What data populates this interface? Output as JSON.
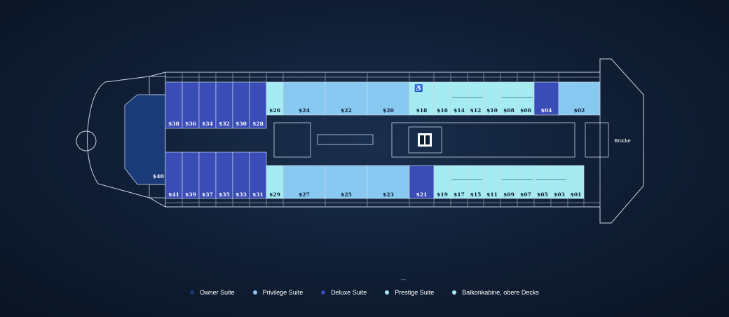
{
  "colors": {
    "owner": "#1a3a78",
    "privilege": "#87c9f0",
    "deluxe": "#3a4cb5",
    "prestige": "#a4ecf2",
    "balcony": "#a4ecf2",
    "outline": "#c9d4e6"
  },
  "cabins": {
    "top": [
      {
        "label": "$38",
        "cat": "deluxe"
      },
      {
        "label": "$36",
        "cat": "deluxe"
      },
      {
        "label": "$34",
        "cat": "deluxe"
      },
      {
        "label": "$32",
        "cat": "deluxe"
      },
      {
        "label": "$30",
        "cat": "deluxe"
      },
      {
        "label": "$28",
        "cat": "deluxe"
      },
      {
        "label": "$26",
        "cat": "prestige"
      },
      {
        "label": "$24",
        "cat": "privilege"
      },
      {
        "label": "$22",
        "cat": "privilege"
      },
      {
        "label": "$20",
        "cat": "privilege"
      },
      {
        "label": "$18",
        "cat": "prestige",
        "icon": "wheelchair-icon"
      },
      {
        "label": "$16",
        "cat": "prestige"
      },
      {
        "label": "$14",
        "cat": "prestige"
      },
      {
        "label": "$12",
        "cat": "prestige"
      },
      {
        "label": "$10",
        "cat": "prestige"
      },
      {
        "label": "$08",
        "cat": "prestige"
      },
      {
        "label": "$06",
        "cat": "prestige"
      },
      {
        "label": "$04",
        "cat": "deluxe"
      },
      {
        "label": "$02",
        "cat": "privilege"
      }
    ],
    "bottom": [
      {
        "label": "$41",
        "cat": "deluxe"
      },
      {
        "label": "$39",
        "cat": "deluxe"
      },
      {
        "label": "$37",
        "cat": "deluxe"
      },
      {
        "label": "$35",
        "cat": "deluxe"
      },
      {
        "label": "$33",
        "cat": "deluxe"
      },
      {
        "label": "$31",
        "cat": "deluxe"
      },
      {
        "label": "$29",
        "cat": "prestige"
      },
      {
        "label": "$27",
        "cat": "privilege"
      },
      {
        "label": "$25",
        "cat": "privilege"
      },
      {
        "label": "$23",
        "cat": "privilege"
      },
      {
        "label": "$21",
        "cat": "deluxe"
      },
      {
        "label": "$19",
        "cat": "prestige"
      },
      {
        "label": "$17",
        "cat": "prestige"
      },
      {
        "label": "$15",
        "cat": "prestige"
      },
      {
        "label": "$11",
        "cat": "prestige"
      },
      {
        "label": "$09",
        "cat": "prestige"
      },
      {
        "label": "$07",
        "cat": "prestige"
      },
      {
        "label": "$05",
        "cat": "prestige"
      },
      {
        "label": "$03",
        "cat": "prestige"
      },
      {
        "label": "$01",
        "cat": "prestige"
      }
    ],
    "stern": {
      "label": "$40",
      "cat": "owner"
    }
  },
  "bridge_label": "Brücke",
  "elevator_icon": "elevator-icon",
  "small_mark": "++",
  "legend": [
    {
      "label": "Owner Suite",
      "color": "#1a3a78"
    },
    {
      "label": "Privilege Suite",
      "color": "#87c9f0"
    },
    {
      "label": "Deluxe Suite",
      "color": "#3a4cb5"
    },
    {
      "label": "Prestige Suite",
      "color": "#a4ecf2"
    },
    {
      "label": "Balkonkabine, obere Decks",
      "color": "#a4ecf2"
    }
  ]
}
